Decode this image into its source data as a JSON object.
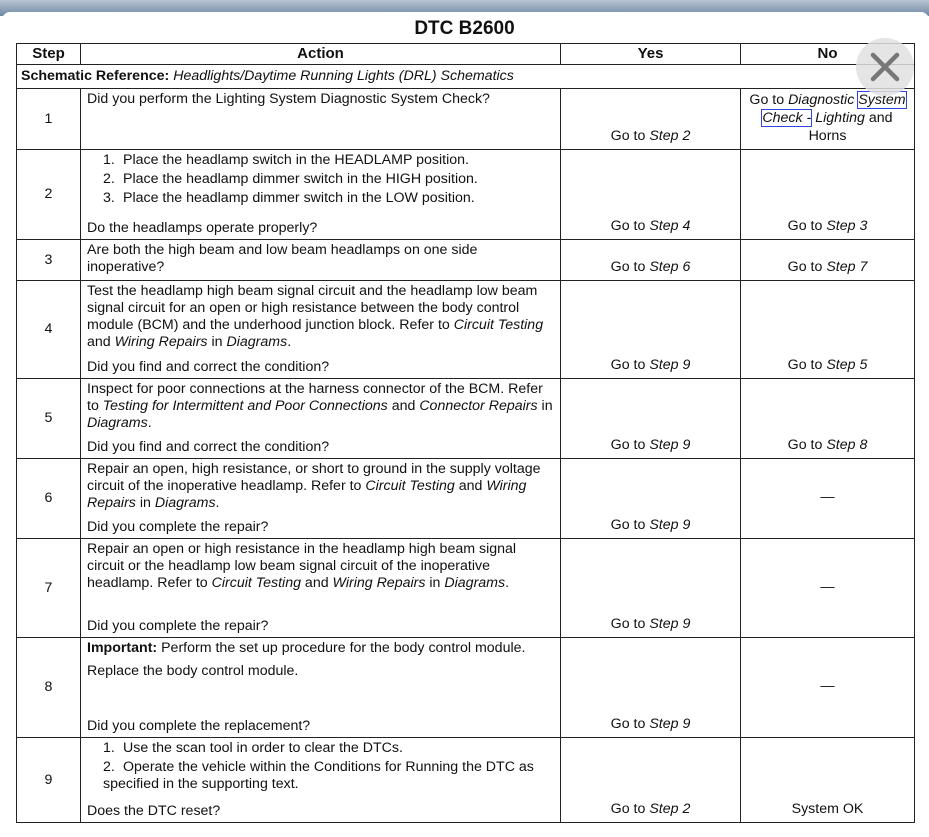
{
  "title": "DTC B2600",
  "headers": {
    "step": "Step",
    "action": "Action",
    "yes": "Yes",
    "no": "No"
  },
  "schematic": {
    "label": "Schematic Reference:",
    "value": "Headlights/Daytime Running Lights (DRL) Schematics"
  },
  "rows": [
    {
      "step": "1",
      "paras": [
        [
          {
            "t": "Did you perform the Lighting System Diagnostic System Check?"
          }
        ]
      ],
      "q": [],
      "yes": [
        {
          "t": "Go to "
        },
        {
          "t": "Step 2",
          "i": true
        }
      ],
      "no": [
        {
          "t": "Go to "
        },
        {
          "t": "Diagnostic",
          "i": true
        },
        {
          "t": " "
        },
        {
          "t": "System Check -",
          "i": true,
          "link": true
        },
        {
          "t": " "
        },
        {
          "t": "Lighting",
          "i": true
        },
        {
          "t": " and  Horns"
        }
      ],
      "no_top": true
    },
    {
      "step": "2",
      "paras": [
        [
          {
            "n": "1."
          },
          {
            "t": "Place the headlamp switch in the HEADLAMP position."
          }
        ],
        [
          {
            "n": "2."
          },
          {
            "t": "Place the headlamp dimmer switch in the HIGH position."
          }
        ],
        [
          {
            "n": "3."
          },
          {
            "t": "Place the headlamp dimmer switch in the LOW position."
          }
        ]
      ],
      "q": [
        {
          "t": "Do the headlamps operate properly?"
        }
      ],
      "yes": [
        {
          "t": "Go to "
        },
        {
          "t": "Step 4",
          "i": true
        }
      ],
      "no": [
        {
          "t": "Go to "
        },
        {
          "t": "Step 3",
          "i": true
        }
      ]
    },
    {
      "step": "3",
      "paras": [
        [
          {
            "t": "Are both the high beam and low beam headlamps on one side inoperative?"
          }
        ]
      ],
      "q": [],
      "yes": [
        {
          "t": "Go to "
        },
        {
          "t": "Step 6",
          "i": true
        }
      ],
      "no": [
        {
          "t": "Go to "
        },
        {
          "t": "Step 7",
          "i": true
        }
      ]
    },
    {
      "step": "4",
      "paras": [
        [
          {
            "t": "Test the headlamp high beam signal circuit and the headlamp low beam signal circuit for an open or high resistance between the body control module (BCM) and the underhood junction block. Refer to "
          },
          {
            "t": "Circuit Testing",
            "i": true
          },
          {
            "t": " and "
          },
          {
            "t": "Wiring Repairs",
            "i": true
          },
          {
            "t": " in "
          },
          {
            "t": "Diagrams",
            "i": true
          },
          {
            "t": "."
          }
        ]
      ],
      "q": [
        {
          "t": "Did you find and correct the condition?"
        }
      ],
      "yes": [
        {
          "t": "Go to "
        },
        {
          "t": "Step 9",
          "i": true
        }
      ],
      "no": [
        {
          "t": "Go to "
        },
        {
          "t": "Step 5",
          "i": true
        }
      ]
    },
    {
      "step": "5",
      "paras": [
        [
          {
            "t": "Inspect for poor connections at the harness connector of the BCM. Refer to "
          },
          {
            "t": "Testing for Intermittent and Poor Connections",
            "i": true
          },
          {
            "t": " and "
          },
          {
            "t": "Connector Repairs",
            "i": true
          },
          {
            "t": " in "
          },
          {
            "t": "Diagrams",
            "i": true
          },
          {
            "t": "."
          }
        ]
      ],
      "q": [
        {
          "t": "Did you find and correct the condition?"
        }
      ],
      "yes": [
        {
          "t": "Go to "
        },
        {
          "t": "Step 9",
          "i": true
        }
      ],
      "no": [
        {
          "t": "Go to "
        },
        {
          "t": "Step 8",
          "i": true
        }
      ]
    },
    {
      "step": "6",
      "paras": [
        [
          {
            "t": "Repair an open, high resistance, or short to ground in the supply voltage circuit of the inoperative headlamp. Refer to "
          },
          {
            "t": "Circuit Testing",
            "i": true
          },
          {
            "t": " and "
          },
          {
            "t": "Wiring Repairs",
            "i": true
          },
          {
            "t": " in "
          },
          {
            "t": "Diagrams",
            "i": true
          },
          {
            "t": "."
          }
        ]
      ],
      "q": [
        {
          "t": "Did you complete the repair?"
        }
      ],
      "yes": [
        {
          "t": "Go to "
        },
        {
          "t": "Step 9",
          "i": true
        }
      ],
      "no": [
        {
          "t": "—"
        }
      ],
      "no_mid": true
    },
    {
      "step": "7",
      "paras": [
        [
          {
            "t": "Repair an open or high resistance in the headlamp high beam signal circuit or the headlamp low beam signal circuit of the inoperative headlamp. Refer to "
          },
          {
            "t": "Circuit Testing",
            "i": true
          },
          {
            "t": " and "
          },
          {
            "t": "Wiring Repairs",
            "i": true
          },
          {
            "t": " in "
          },
          {
            "t": "Diagrams",
            "i": true
          },
          {
            "t": "."
          }
        ]
      ],
      "q": [
        {
          "t": "Did you complete the repair?"
        }
      ],
      "yes": [
        {
          "t": "Go to "
        },
        {
          "t": "Step 9",
          "i": true
        }
      ],
      "no": [
        {
          "t": "—"
        }
      ],
      "no_mid": true
    },
    {
      "step": "8",
      "paras": [
        [
          {
            "t": "Important:",
            "b": true
          },
          {
            "t": " Perform the set up procedure for the body control module."
          }
        ],
        [
          {
            "t": "Replace the body control module."
          }
        ]
      ],
      "q": [
        {
          "t": "Did you complete the replacement?"
        }
      ],
      "yes": [
        {
          "t": "Go to "
        },
        {
          "t": "Step 9",
          "i": true
        }
      ],
      "no": [
        {
          "t": "—"
        }
      ],
      "no_mid": true
    },
    {
      "step": "9",
      "paras": [
        [
          {
            "n": "1."
          },
          {
            "t": "Use the scan tool in order to clear the DTCs."
          }
        ],
        [
          {
            "n": "2."
          },
          {
            "t": "Operate the vehicle within the Conditions for Running the DTC as specified in the supporting text."
          }
        ]
      ],
      "q": [
        {
          "t": "Does the DTC reset?"
        }
      ],
      "yes": [
        {
          "t": "Go to "
        },
        {
          "t": "Step 2",
          "i": true
        }
      ],
      "no": [
        {
          "t": "System OK"
        }
      ]
    }
  ],
  "close_icon": "close-x-icon"
}
